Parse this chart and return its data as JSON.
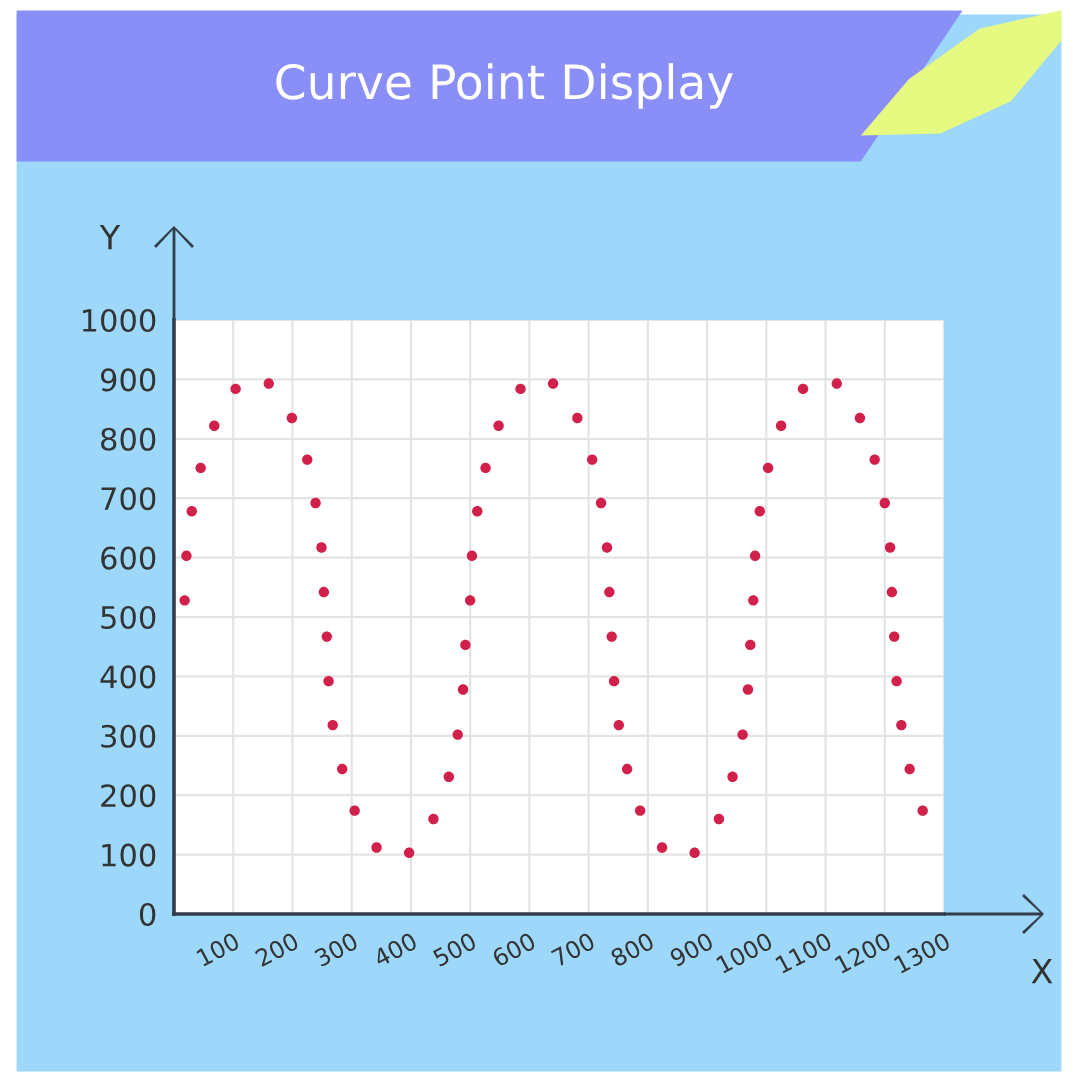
{
  "chart_data": {
    "type": "scatter",
    "title": "Curve Point Display",
    "xlabel": "X",
    "ylabel": "Y",
    "xlim": [
      0,
      1300
    ],
    "ylim": [
      0,
      1000
    ],
    "xticks": [
      {
        "value": 0,
        "label": null
      },
      100,
      200,
      300,
      400,
      500,
      600,
      700,
      800,
      900,
      1000,
      1100,
      1200,
      1300
    ],
    "yticks": [
      0,
      100,
      200,
      300,
      400,
      500,
      600,
      700,
      800,
      900,
      1000
    ],
    "grid": true,
    "marker": "circle",
    "legend": false,
    "series": [
      {
        "color": "#d1204a",
        "x": [
          18,
          21,
          30,
          45,
          68,
          104,
          160,
          199,
          225,
          239,
          249,
          253,
          258,
          261,
          268,
          284,
          305,
          342,
          397,
          438,
          464,
          479,
          488,
          492,
          500,
          503,
          512,
          526,
          548,
          585,
          640,
          681,
          706,
          721,
          731,
          735,
          739,
          743,
          751,
          765,
          787,
          824,
          879,
          920,
          943,
          960,
          969,
          973,
          978,
          981,
          989,
          1003,
          1025,
          1062,
          1119,
          1158,
          1183,
          1200,
          1209,
          1212,
          1216,
          1220,
          1228,
          1242,
          1264
        ],
        "values": [
          528,
          603,
          678,
          751,
          822,
          884,
          893,
          835,
          765,
          692,
          617,
          542,
          467,
          392,
          318,
          244,
          174,
          112,
          103,
          160,
          231,
          302,
          378,
          453,
          528,
          603,
          678,
          751,
          822,
          884,
          893,
          835,
          765,
          692,
          617,
          542,
          467,
          392,
          318,
          244,
          174,
          112,
          103,
          160,
          231,
          302,
          378,
          453,
          528,
          603,
          678,
          751,
          822,
          884,
          893,
          835,
          765,
          692,
          617,
          542,
          467,
          392,
          318,
          244,
          174
        ]
      }
    ]
  }
}
